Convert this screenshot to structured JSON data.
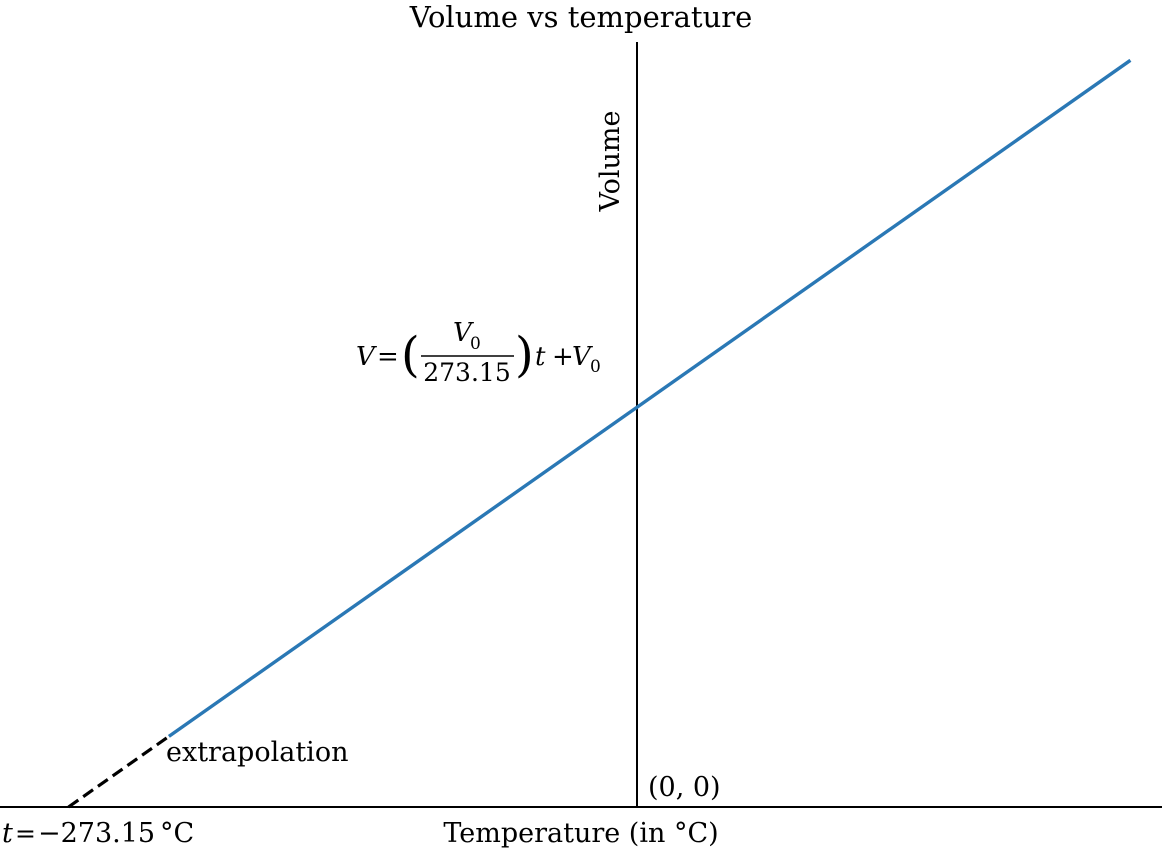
{
  "chart_data": {
    "type": "line",
    "title": "Volume vs temperature",
    "xlabel": "Temperature (in °C)",
    "ylabel": "Volume",
    "xlim": [
      -323,
      523
    ],
    "ylim": [
      0,
      2.9
    ],
    "grid": false,
    "series": [
      {
        "style": "solid",
        "color": "#2a78b5",
        "x": [
          -200,
          500
        ],
        "y": [
          0.2678,
          2.8305
        ]
      },
      {
        "style": "dashed",
        "color": "#000000",
        "x": [
          -273.15,
          -200
        ],
        "y": [
          0.0,
          0.2678
        ]
      }
    ],
    "annotations": {
      "formula": {
        "lhs": "V",
        "eq": "=",
        "numerator": "V",
        "numerator_sub": "0",
        "denominator": "273.15",
        "open_paren": "(",
        "close_paren": ")",
        "var": "t",
        "plus": "+",
        "rhs": "V",
        "rhs_sub": "0"
      },
      "extrapolation": "extrapolation",
      "origin": "(0, 0)",
      "intercept_var": "t",
      "intercept_eq": "=",
      "intercept_value": "−273.15",
      "intercept_unit": "°C"
    }
  }
}
